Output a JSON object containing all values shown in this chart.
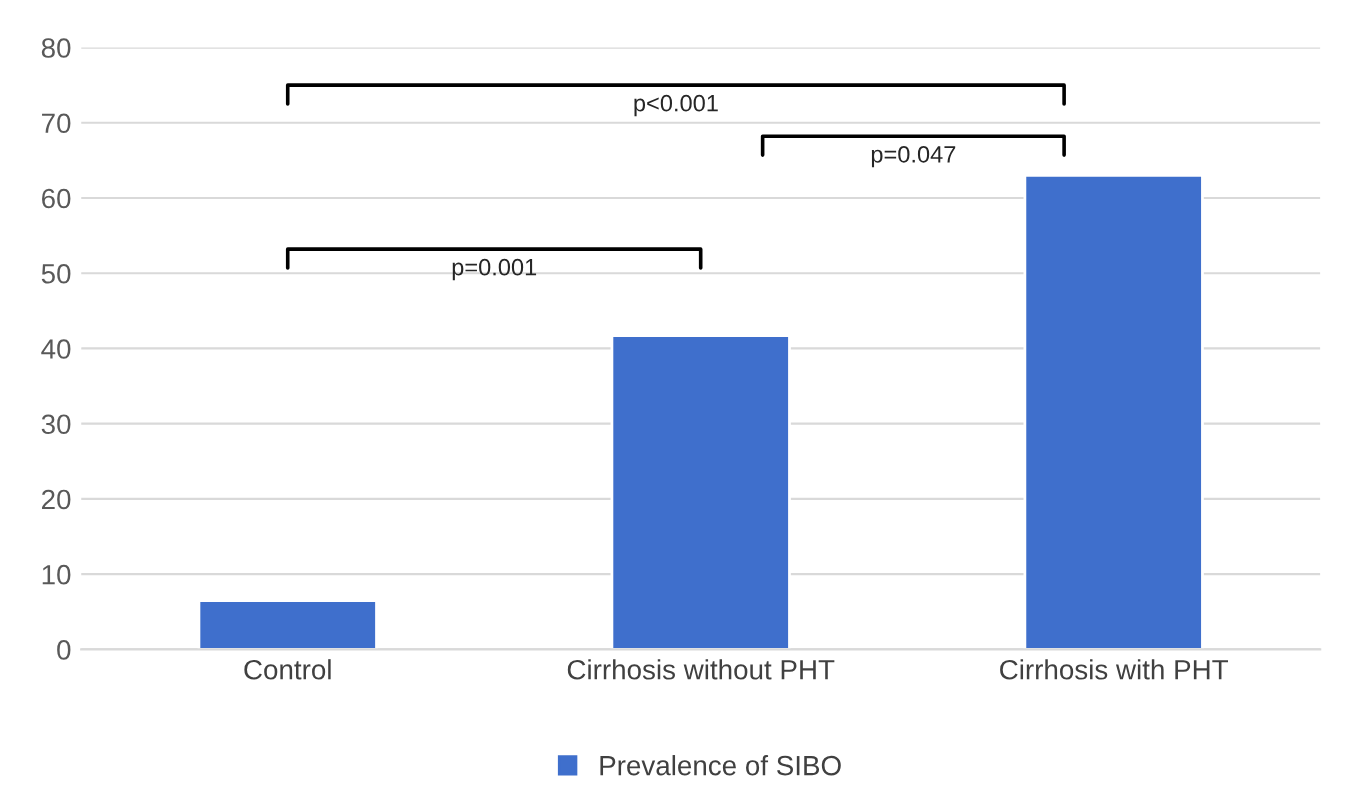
{
  "chart_data": {
    "type": "bar",
    "categories": [
      "Control",
      "Cirrhosis without PHT",
      "Cirrhosis with PHT"
    ],
    "series": [
      {
        "name": "Prevalence of SIBO",
        "color": "#3f6fcc",
        "values": [
          6.5,
          41.7,
          63
        ]
      }
    ],
    "ylim": [
      0,
      80
    ],
    "yticks": [
      0,
      10,
      20,
      30,
      40,
      50,
      60,
      70,
      80
    ],
    "grid": "y",
    "legend": "bottom",
    "annotations": [
      "p<0.001",
      "p=0.047",
      "p=0.001"
    ]
  }
}
